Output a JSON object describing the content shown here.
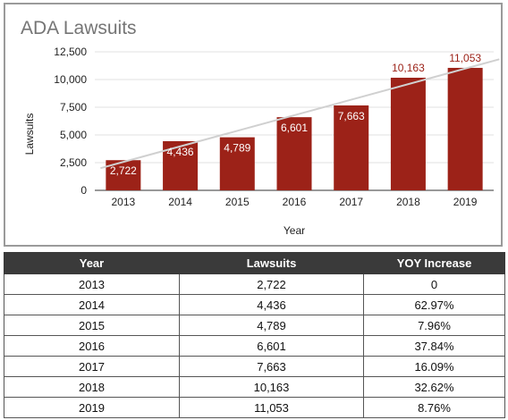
{
  "chart_data": {
    "type": "bar",
    "title": "ADA Lawsuits",
    "xlabel": "Year",
    "ylabel": "Lawsuits",
    "categories": [
      "2013",
      "2014",
      "2015",
      "2016",
      "2017",
      "2018",
      "2019"
    ],
    "values": [
      2722,
      4436,
      4789,
      6601,
      7663,
      10163,
      11053
    ],
    "value_labels": [
      "2,722",
      "4,436",
      "4,789",
      "6,601",
      "7,663",
      "10,163",
      "11,053"
    ],
    "yticks": [
      0,
      2500,
      5000,
      7500,
      10000,
      12500
    ],
    "ytick_labels": [
      "0",
      "2,500",
      "5,000",
      "7,500",
      "10,000",
      "12,500"
    ],
    "ylim": [
      0,
      12500
    ],
    "trendline": true,
    "grid": true,
    "legend": "none",
    "colors": {
      "bar": "#9c2218",
      "trendline": "#d0d0d0",
      "grid": "#e0e0e0",
      "label_outside": "#9c2218"
    }
  },
  "table": {
    "headers": [
      "Year",
      "Lawsuits",
      "YOY Increase"
    ],
    "rows": [
      [
        "2013",
        "2,722",
        "0"
      ],
      [
        "2014",
        "4,436",
        "62.97%"
      ],
      [
        "2015",
        "4,789",
        "7.96%"
      ],
      [
        "2016",
        "6,601",
        "37.84%"
      ],
      [
        "2017",
        "7,663",
        "16.09%"
      ],
      [
        "2018",
        "10,163",
        "32.62%"
      ],
      [
        "2019",
        "11,053",
        "8.76%"
      ]
    ]
  }
}
